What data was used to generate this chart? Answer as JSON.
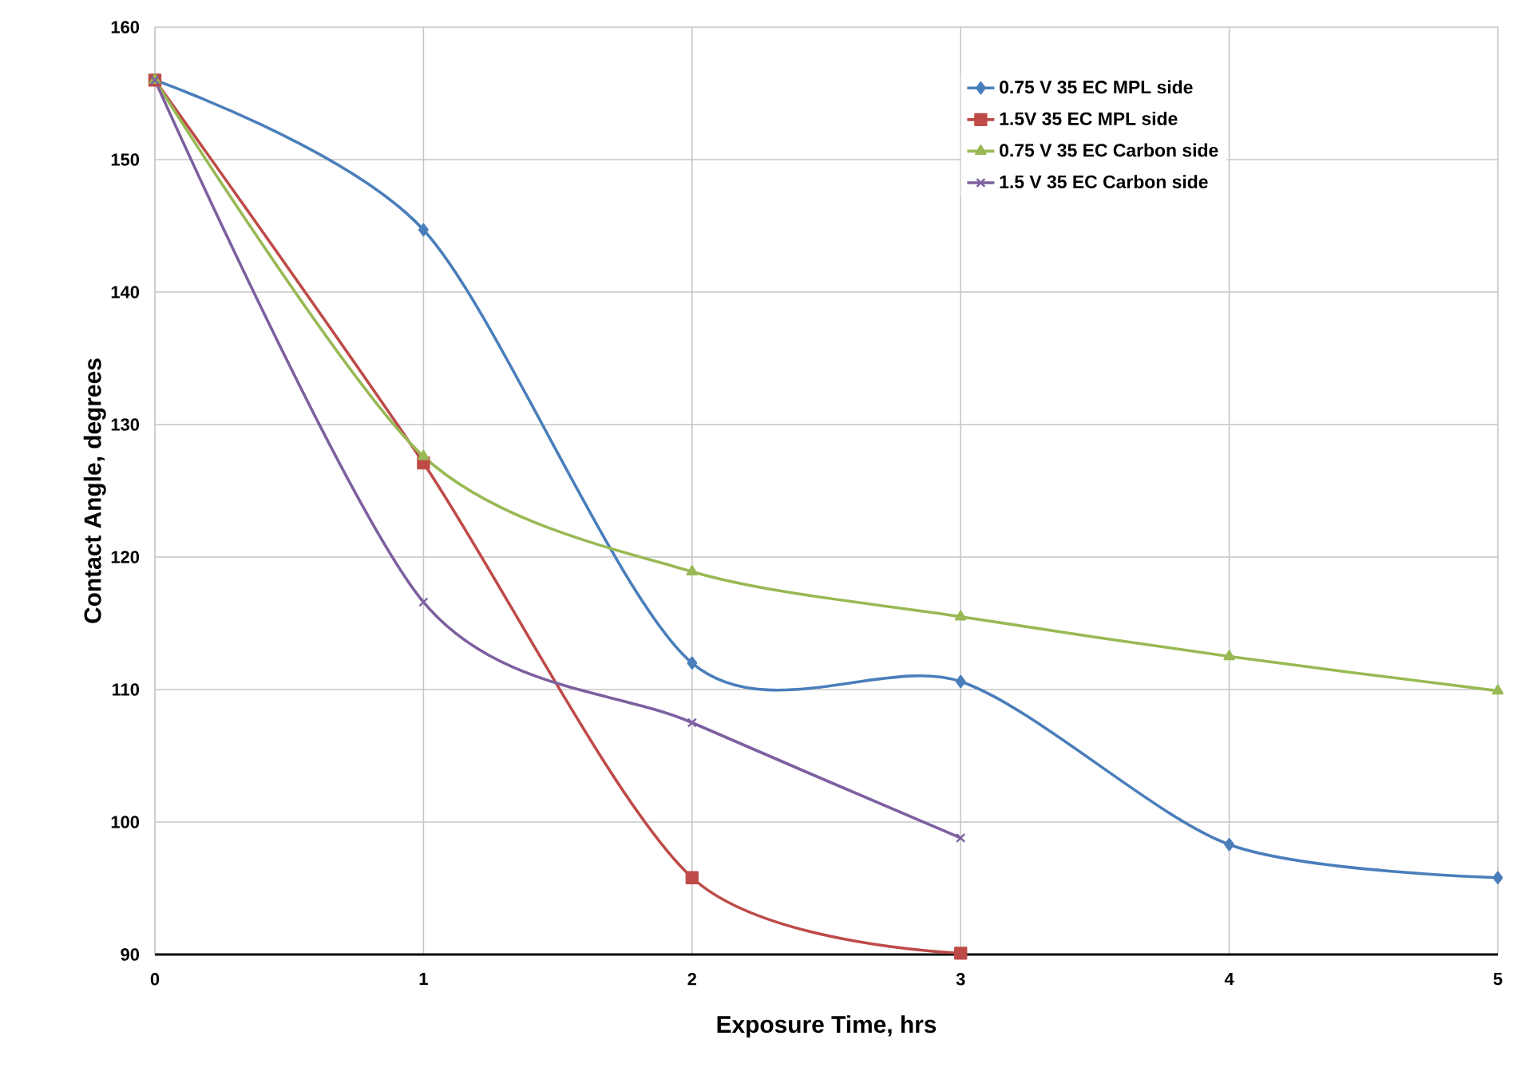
{
  "chart_data": {
    "type": "line",
    "xlabel": "Exposure Time, hrs",
    "ylabel": "Contact Angle, degrees",
    "xlim": [
      0,
      5
    ],
    "xticks": [
      0,
      1,
      2,
      3,
      4,
      5
    ],
    "ylim": [
      90,
      160
    ],
    "yticks": [
      90,
      100,
      110,
      120,
      130,
      140,
      150,
      160
    ],
    "grid": true,
    "legend": "top right",
    "line_style": "solid",
    "series": [
      {
        "name": "0.75 V 35 EC MPL side",
        "color": "#4a7ebb",
        "marker": "diamond",
        "x": [
          0,
          1,
          2,
          3,
          4,
          5
        ],
        "values": [
          156,
          144.7,
          112.0,
          110.6,
          98.3,
          95.8
        ]
      },
      {
        "name": "1.5V 35 EC MPL side",
        "color": "#be4b48",
        "marker": "square",
        "x": [
          0,
          1,
          2,
          3
        ],
        "values": [
          156,
          127.1,
          95.8,
          90.1
        ]
      },
      {
        "name": "0.75 V 35 EC Carbon side",
        "color": "#98b954",
        "marker": "triangle",
        "x": [
          0,
          1,
          2,
          3,
          4,
          5
        ],
        "values": [
          156,
          127.6,
          118.9,
          115.5,
          112.5,
          109.9
        ]
      },
      {
        "name": "1.5 V 35 EC Carbon side",
        "color": "#7d60a0",
        "marker": "cross",
        "x": [
          0,
          1,
          2,
          3
        ],
        "values": [
          156,
          116.6,
          107.5,
          98.8
        ]
      }
    ]
  }
}
